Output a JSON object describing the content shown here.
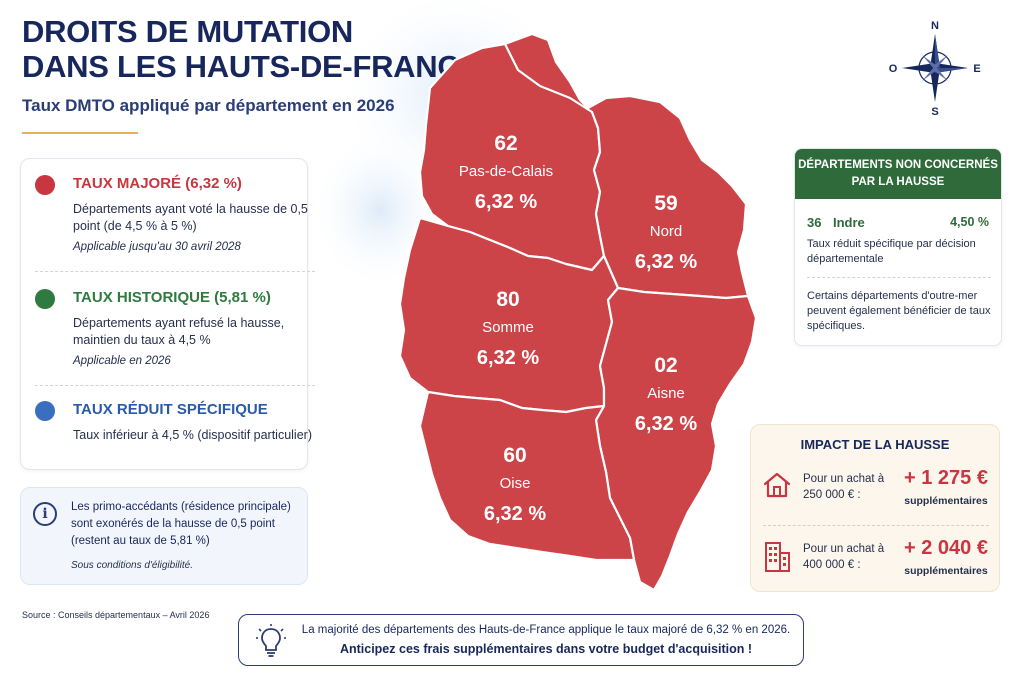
{
  "header": {
    "title_line1": "DROITS DE MUTATION",
    "title_line2": "DANS LES HAUTS-DE-FRANCE",
    "subtitle": "Taux DMTO appliqué par département en 2026"
  },
  "colors": {
    "majore": "#c8363f",
    "historique": "#2f7a3f",
    "reduit": "#3a6fbf",
    "map_fill": "#cc4348",
    "navy": "#17275c"
  },
  "legend": {
    "items": [
      {
        "dot_color": "#c8363f",
        "heading": "TAUX MAJORÉ (6,32 %)",
        "heading_color": "#c8363f",
        "description": "Départements ayant voté la hausse de 0,5 point (de 4,5 % à 5 %)",
        "note": "Applicable jusqu'au 30 avril 2028"
      },
      {
        "dot_color": "#2f7a3f",
        "heading": "TAUX HISTORIQUE (5,81 %)",
        "heading_color": "#2f7a3f",
        "description": "Départements ayant refusé la hausse, maintien du taux à 4,5 %",
        "note": "Applicable en 2026"
      },
      {
        "dot_color": "#3a6fbf",
        "heading": "TAUX RÉDUIT SPÉCIFIQUE",
        "heading_color": "#2b5aa8",
        "description": "Taux inférieur à 4,5 % (dispositif particulier)",
        "note": ""
      }
    ]
  },
  "info_box": {
    "icon": "info-icon",
    "text": "Les primo-accédants (résidence principale) sont exonérés de la hausse de 0,5 point (restent au taux de 5,81 %)",
    "sub": "Sous conditions d'éligibilité."
  },
  "source": "Source : Conseils départementaux – Avril 2026",
  "compass": {
    "n": "N",
    "s": "S",
    "e": "E",
    "o": "O"
  },
  "map": {
    "departments": [
      {
        "code": "62",
        "name": "Pas-de-Calais",
        "rate": "6,32 %"
      },
      {
        "code": "59",
        "name": "Nord",
        "rate": "6,32 %"
      },
      {
        "code": "80",
        "name": "Somme",
        "rate": "6,32 %"
      },
      {
        "code": "02",
        "name": "Aisne",
        "rate": "6,32 %"
      },
      {
        "code": "60",
        "name": "Oise",
        "rate": "6,32 %"
      }
    ]
  },
  "non_concernes": {
    "header": "DÉPARTEMENTS NON CONCERNÉS PAR LA HAUSSE",
    "code": "36",
    "name": "Indre",
    "rate": "4,50 %",
    "description": "Taux réduit spécifique par décision départementale",
    "note": "Certains départements d'outre-mer peuvent également bénéficier de taux spécifiques."
  },
  "impact": {
    "title": "IMPACT DE LA HAUSSE",
    "rows": [
      {
        "icon": "house-icon",
        "label": "Pour un achat à 250 000 € :",
        "amount": "+ 1 275 €",
        "extra": "supplémentaires"
      },
      {
        "icon": "building-icon",
        "label": "Pour un achat à 400 000 € :",
        "amount": "+ 2 040 €",
        "extra": "supplémentaires"
      }
    ]
  },
  "banner": {
    "icon": "lightbulb-icon",
    "line1": "La majorité des départements des Hauts-de-France applique le taux majoré de 6,32 % en 2026.",
    "line2": "Anticipez ces frais supplémentaires dans votre budget d'acquisition !"
  }
}
